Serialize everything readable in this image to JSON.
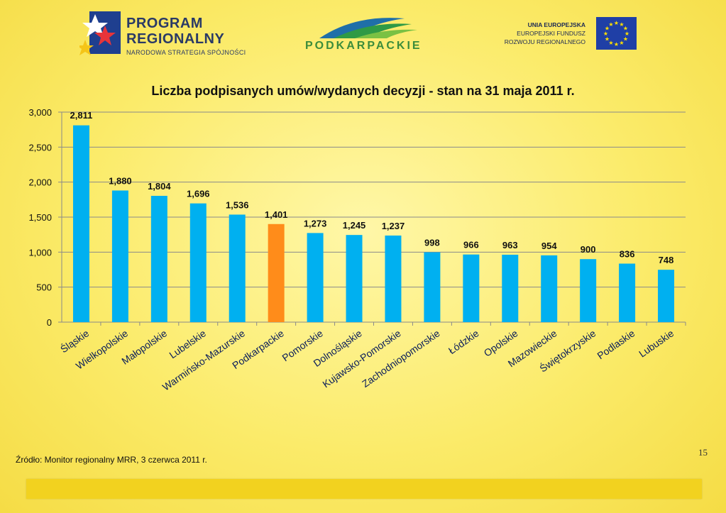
{
  "header": {
    "left_logo": {
      "line1": "PROGRAM",
      "line2": "REGIONALNY",
      "line3": "NARODOWA STRATEGIA SPÓJNOŚCI",
      "icon": "pr-logo-icon"
    },
    "center_logo": {
      "text": "PODKARPACKIE",
      "icon": "mountains-icon"
    },
    "right_logo": {
      "line1": "UNIA EUROPEJSKA",
      "line2": "EUROPEJSKI FUNDUSZ",
      "line3": "ROZWOJU REGIONALNEGO",
      "icon": "eu-flag-icon"
    }
  },
  "chart_data": {
    "type": "bar",
    "title": "Liczba podpisanych umów/wydanych decyzji - stan na 31 maja 2011 r.",
    "categories": [
      "Śląskie",
      "Wielkopolskie",
      "Małopolskie",
      "Lubelskie",
      "Warmińsko-Mazurskie",
      "Podkarpackie",
      "Pomorskie",
      "Dolnośląskie",
      "Kujawsko-Pomorskie",
      "Zachodniopomorskie",
      "Łódzkie",
      "Opolskie",
      "Mazowieckie",
      "Świętokrzyskie",
      "Podlaskie",
      "Lubuskie"
    ],
    "values": [
      2811,
      1880,
      1804,
      1696,
      1536,
      1401,
      1273,
      1245,
      1237,
      998,
      966,
      963,
      954,
      900,
      836,
      748
    ],
    "value_labels": [
      "2,811",
      "1,880",
      "1,804",
      "1,696",
      "1,536",
      "1,401",
      "1,273",
      "1,245",
      "1,237",
      "998",
      "966",
      "963",
      "954",
      "900",
      "836",
      "748"
    ],
    "ylim": [
      0,
      3000
    ],
    "yticks": [
      0,
      500,
      1000,
      1500,
      2000,
      2500,
      3000
    ],
    "ytick_labels": [
      "0",
      "500",
      "1,000",
      "1,500",
      "2,000",
      "2,500",
      "3,000"
    ],
    "bar_color": "#00b0f0",
    "highlight_category": "Podkarpackie",
    "highlight_color": "#ff8c1a",
    "grid": true,
    "legend": "none"
  },
  "footer": {
    "source": "Źródło: Monitor regionalny MRR,  3 czerwca 2011 r.",
    "page_number": "15"
  }
}
